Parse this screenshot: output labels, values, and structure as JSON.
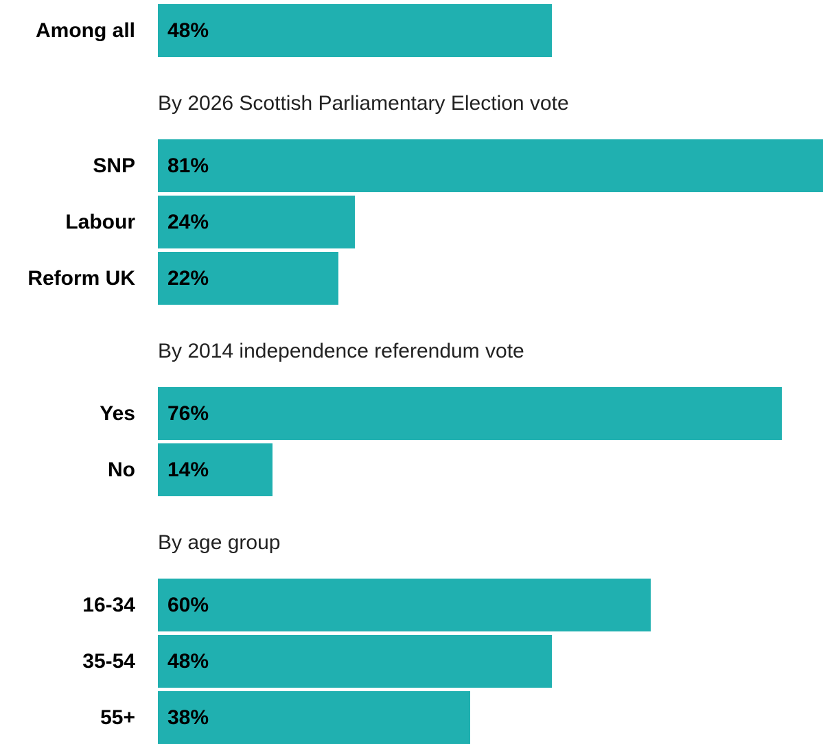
{
  "chart_data": {
    "type": "bar",
    "orientation": "horizontal",
    "bar_color": "#20b0b0",
    "xlim": [
      0,
      81
    ],
    "grid": false,
    "rows": [
      {
        "label": "Among all",
        "value": 48,
        "value_label": "48%"
      },
      {
        "group": "By 2026 Scottish Parliamentary Election vote",
        "label": "SNP",
        "value": 81,
        "value_label": "81%"
      },
      {
        "group": "By 2026 Scottish Parliamentary Election vote",
        "label": "Labour",
        "value": 24,
        "value_label": "24%"
      },
      {
        "group": "By 2026 Scottish Parliamentary Election vote",
        "label": "Reform UK",
        "value": 22,
        "value_label": "22%"
      },
      {
        "group": "By 2014 independence referendum vote",
        "label": "Yes",
        "value": 76,
        "value_label": "76%"
      },
      {
        "group": "By 2014 independence referendum vote",
        "label": "No",
        "value": 14,
        "value_label": "14%"
      },
      {
        "group": "By age group",
        "label": "16-34",
        "value": 60,
        "value_label": "60%"
      },
      {
        "group": "By age group",
        "label": "35-54",
        "value": 48,
        "value_label": "48%"
      },
      {
        "group": "By age group",
        "label": "55+",
        "value": 38,
        "value_label": "38%"
      }
    ],
    "groups": [
      "By 2026 Scottish Parliamentary Election vote",
      "By 2014 independence referendum vote",
      "By age group"
    ]
  }
}
